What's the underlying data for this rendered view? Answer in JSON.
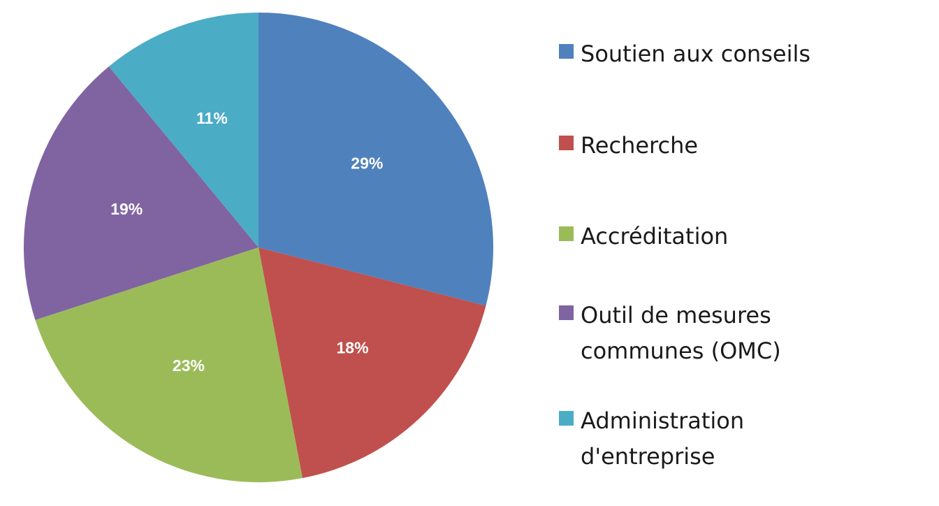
{
  "chart_data": {
    "type": "pie",
    "title": "",
    "slices": [
      {
        "label": "Soutien aux conseils",
        "value": 29,
        "value_label": "29%",
        "color": "#4F81BD"
      },
      {
        "label": "Recherche",
        "value": 18,
        "value_label": "18%",
        "color": "#C0504D"
      },
      {
        "label": "Accréditation",
        "value": 23,
        "value_label": "23%",
        "color": "#9BBB59"
      },
      {
        "label": "Outil de mesures communes (OMC)",
        "value": 19,
        "value_label": "19%",
        "color": "#8064A2"
      },
      {
        "label": "Administration d'entreprise",
        "value": 11,
        "value_label": "11%",
        "color": "#4BACC6"
      }
    ],
    "legend_position": "right"
  }
}
